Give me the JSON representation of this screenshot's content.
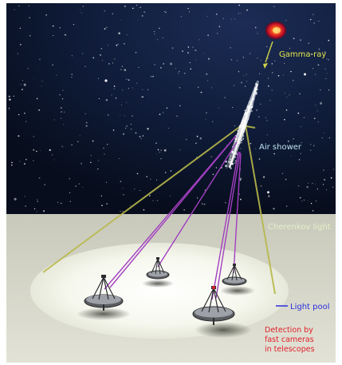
{
  "labels": {
    "gamma_ray": "Gamma-ray",
    "air_shower": "Air shower",
    "cherenkov_light": "Cherenkov light",
    "light_pool": "Light pool",
    "detection_line1": "Detection by",
    "detection_line2": "fast cameras",
    "detection_line3": "in telescopes"
  },
  "colors": {
    "sky": "#0b1426",
    "ground": "#cfd0c3",
    "light_pool": "#f4f7ec",
    "cone": "#b8b84a",
    "rays": "#a23fc0",
    "gamma_label": "#e4e84a",
    "shower_label": "#bfe4ee",
    "cherenkov_label": "#e4f0c8",
    "pool_label": "#2c2ce0",
    "detection_label": "#e0202a"
  }
}
